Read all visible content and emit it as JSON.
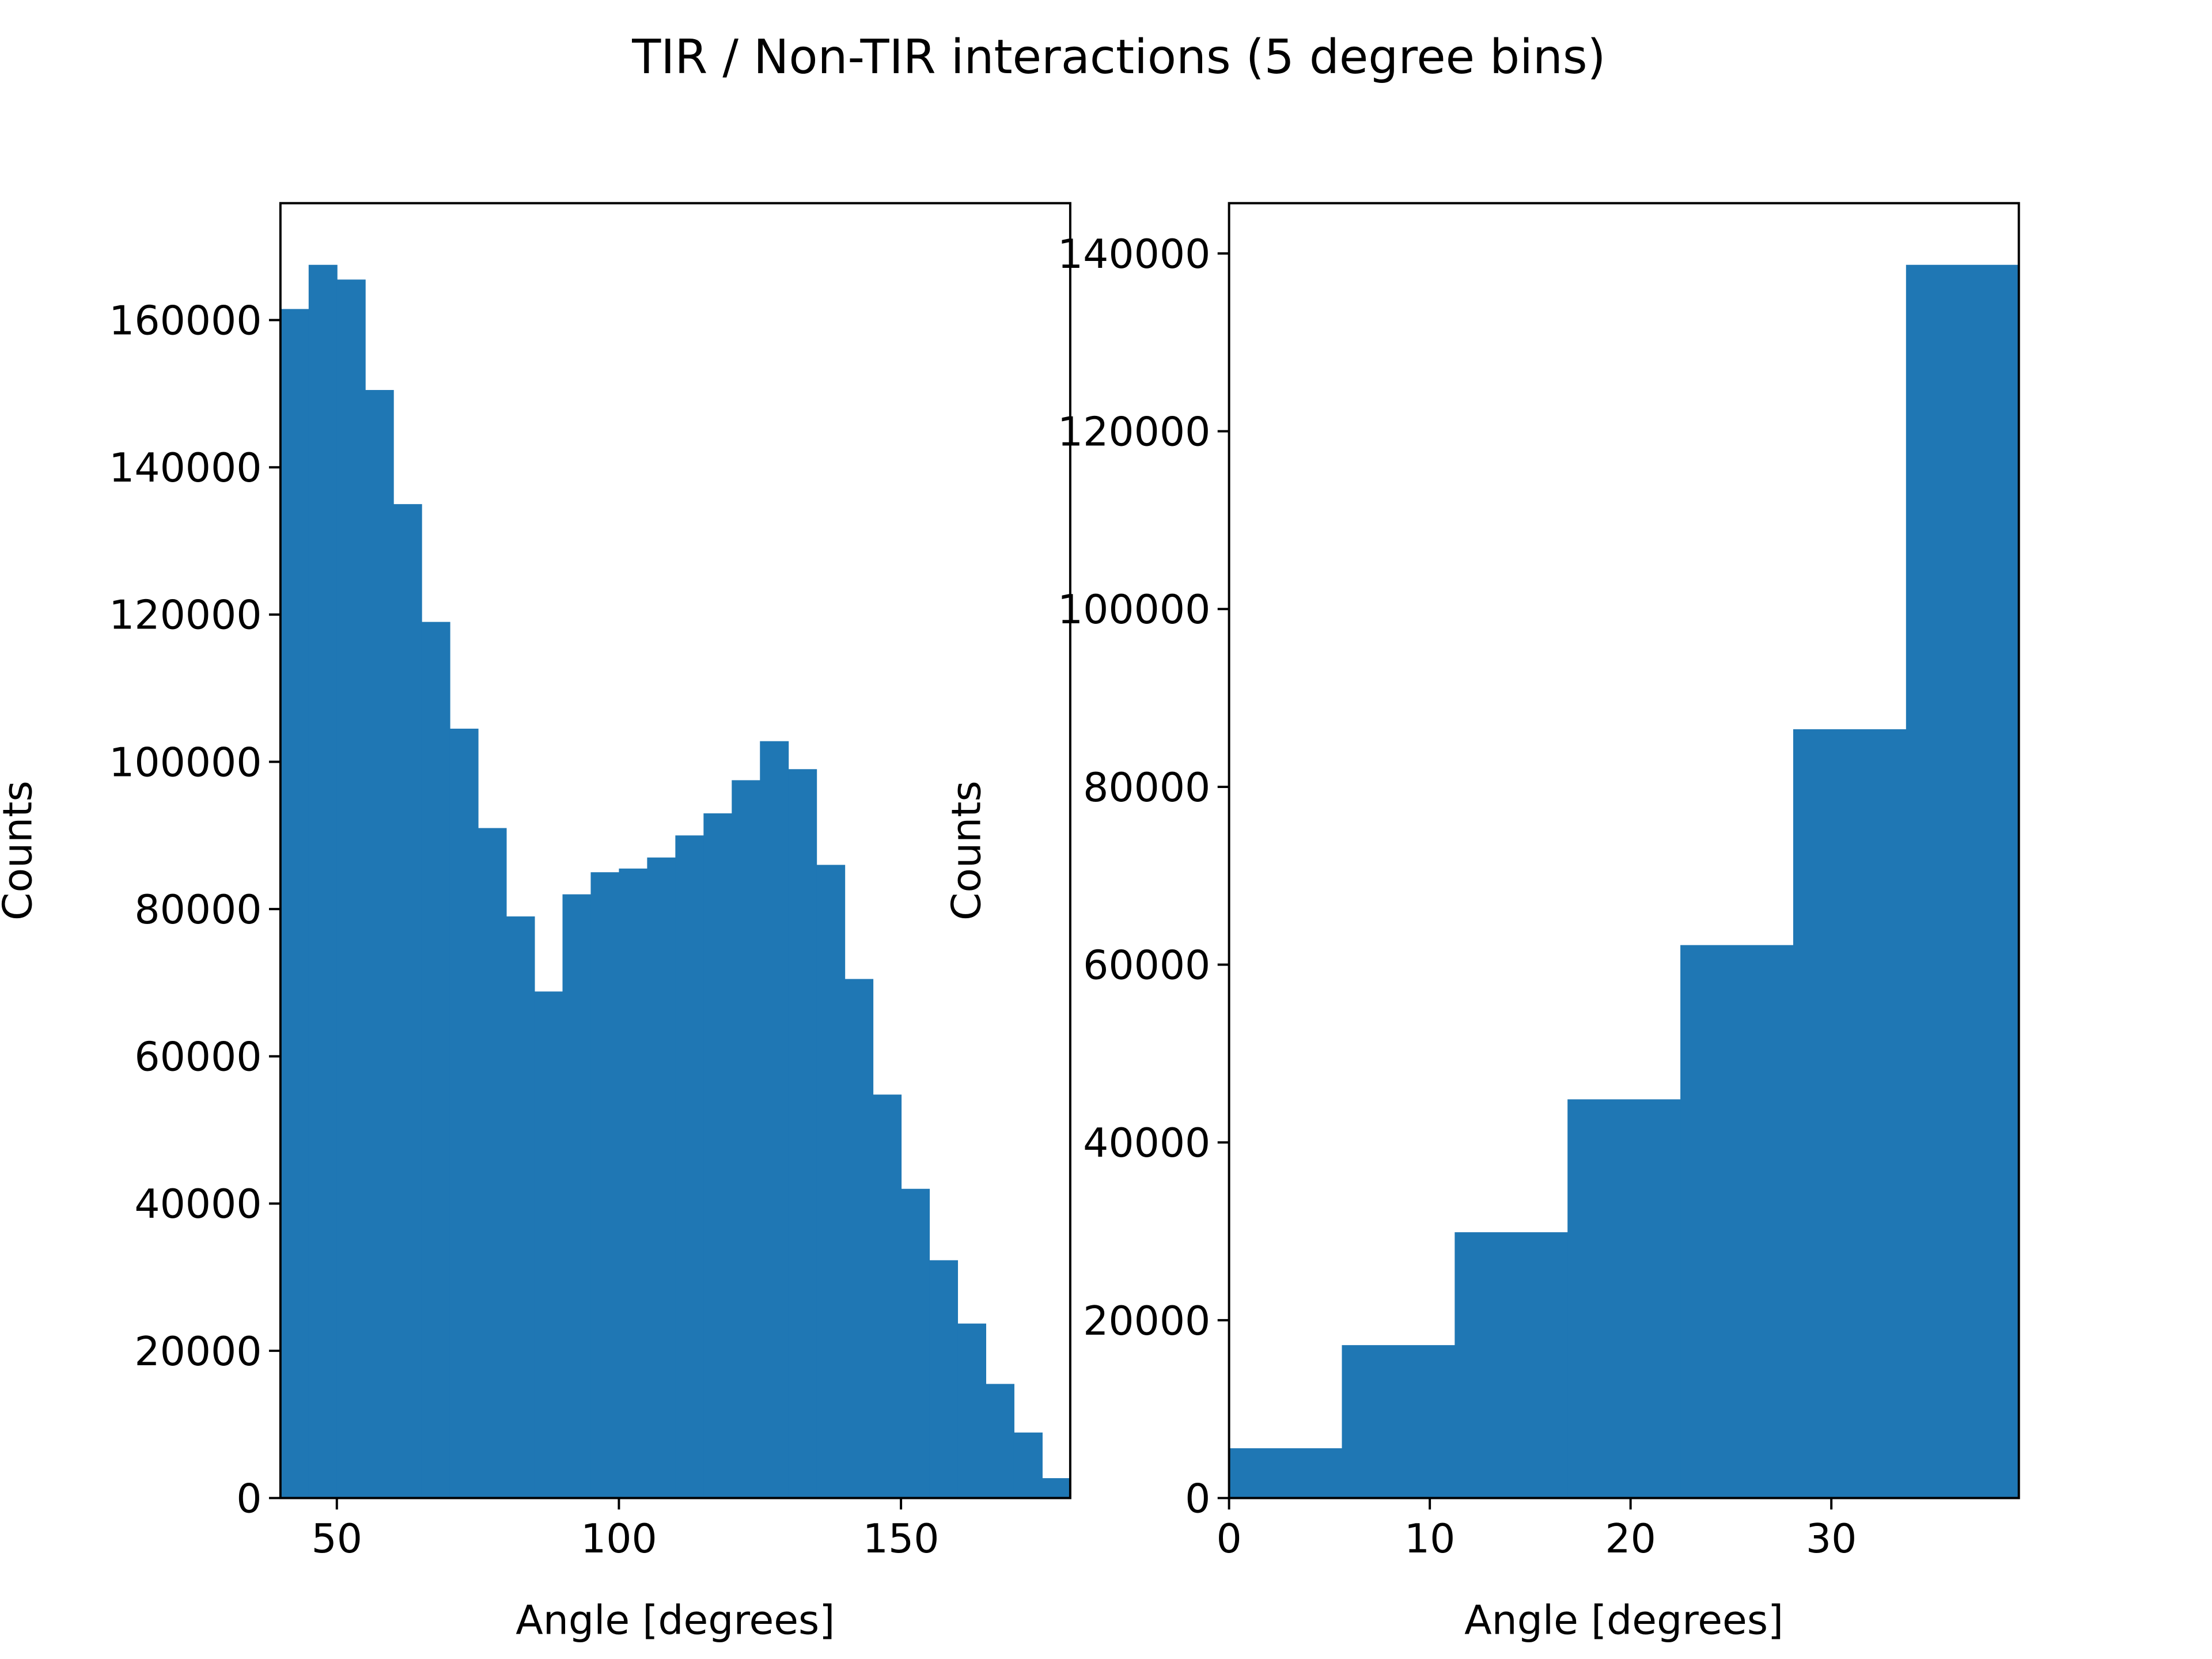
{
  "title": "TIR / Non-TIR interactions (5 degree bins)",
  "chart_data": [
    {
      "type": "histogram",
      "xlabel": "Angle [degrees]",
      "ylabel": "Counts",
      "color": "#1f77b4",
      "bins": [
        40,
        45,
        50,
        55,
        60,
        65,
        70,
        75,
        80,
        85,
        90,
        95,
        100,
        105,
        110,
        115,
        120,
        125,
        130,
        135,
        140,
        145,
        150,
        155,
        160,
        165,
        170,
        175,
        180
      ],
      "values": [
        161500,
        167500,
        165500,
        150500,
        135000,
        119000,
        104500,
        91000,
        79000,
        68800,
        82000,
        85000,
        85500,
        87000,
        90000,
        93000,
        97500,
        102800,
        99000,
        86000,
        70500,
        54800,
        42000,
        32300,
        23700,
        15500,
        8900,
        2700
      ],
      "xlim": [
        40,
        180
      ],
      "xticks": [
        50,
        100,
        150
      ],
      "ylim": [
        0,
        175875
      ],
      "yticks": [
        0,
        20000,
        40000,
        60000,
        80000,
        100000,
        120000,
        140000,
        160000
      ]
    },
    {
      "type": "histogram",
      "xlabel": "Angle [degrees]",
      "ylabel": "Counts",
      "color": "#1f77b4",
      "bins": [
        0,
        5.62,
        11.24,
        16.86,
        22.48,
        28.1,
        33.72,
        39.34
      ],
      "values": [
        5600,
        17200,
        29900,
        44850,
        62200,
        86480,
        138720
      ],
      "xlim": [
        0,
        39.34
      ],
      "xticks": [
        0,
        10,
        20,
        30
      ],
      "ylim": [
        0,
        145656
      ],
      "yticks": [
        0,
        20000,
        40000,
        60000,
        80000,
        100000,
        120000,
        140000
      ]
    }
  ]
}
